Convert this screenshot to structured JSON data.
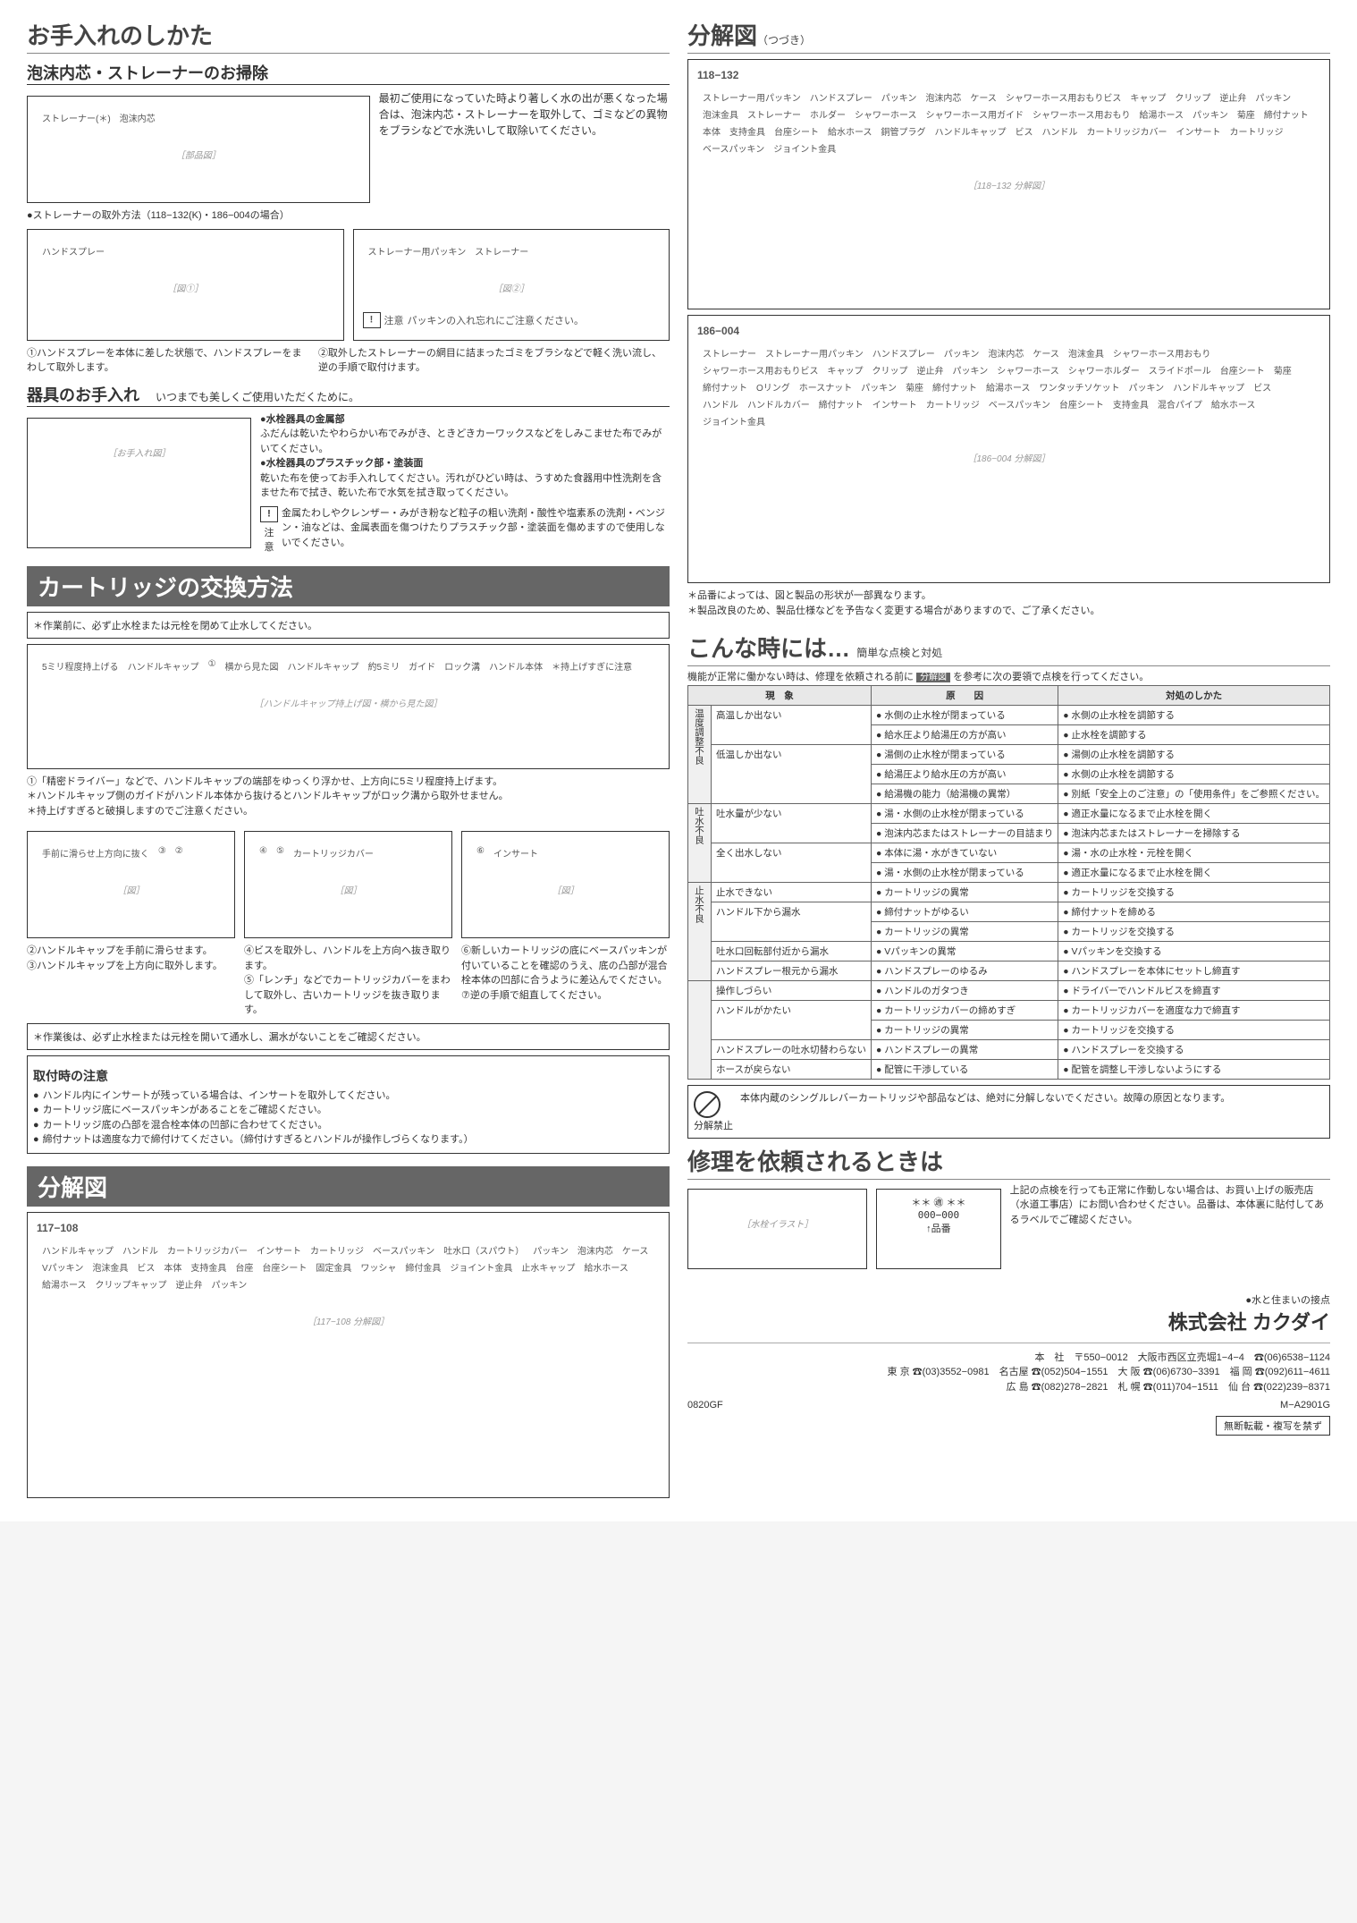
{
  "left": {
    "section1_title": "お手入れのしかた",
    "sub1_title": "泡沫内芯・ストレーナーのお掃除",
    "sub1_intro": "最初ご使用になっていた時より著しく水の出が悪くなった場合は、泡沫内芯・ストレーナーを取外して、ゴミなどの異物をブラシなどで水洗いして取除いてください。",
    "diag1_labels": [
      "ストレーナー(＊)",
      "泡沫内芯"
    ],
    "strainer_note": "●ストレーナーの取外方法（118−132(K)・186−004の場合）",
    "diag2_labels": [
      "ハンドスプレー",
      "ストレーナー用パッキン",
      "ストレーナー"
    ],
    "caution1": "パッキンの入れ忘れにご注意ください。",
    "step1": "①ハンドスプレーを本体に差した状態で、ハンドスプレーをまわして取外します。",
    "step2": "②取外したストレーナーの網目に詰まったゴミをブラシなどで軽く洗い流し、逆の手順で取付けます。",
    "sub2_title": "器具のお手入れ",
    "sub2_lead": "いつまでも美しくご使用いただくために。",
    "care_items": [
      {
        "h": "●水栓器具の金属部",
        "t": "ふだんは乾いたやわらかい布でみがき、ときどきカーワックスなどをしみこませた布でみがいてください。"
      },
      {
        "h": "●水栓器具のプラスチック部・塗装面",
        "t": "乾いた布を使ってお手入れしてください。汚れがひどい時は、うすめた食器用中性洗剤を含ませた布で拭き、乾いた布で水気を拭き取ってください。"
      }
    ],
    "caution2": "金属たわしやクレンザー・みがき粉など粒子の粗い洗剤・酸性や塩素系の洗剤・ベンジン・油などは、金属表面を傷つけたりプラスチック部・塗装面を傷めますので使用しないでください。",
    "section2_title": "カートリッジの交換方法",
    "sec2_warn1": "＊作業前に、必ず止水栓または元栓を閉めて止水してください。",
    "diag3_labels": [
      "5ミリ程度持上げる",
      "ハンドルキャップ",
      "①",
      "横から見た図",
      "ハンドルキャップ",
      "約5ミリ",
      "ガイド",
      "ロック溝",
      "ハンドル本体",
      "＊持上げすぎに注意"
    ],
    "sec2_t1": "①「精密ドライバー」などで、ハンドルキャップの端部をゆっくり浮かせ、上方向に5ミリ程度持上げます。",
    "sec2_t2": "＊ハンドルキャップ側のガイドがハンドル本体から抜けるとハンドルキャップがロック溝から取外せません。",
    "sec2_t3": "＊持上げすぎると破損しますのでご注意ください。",
    "diag4_cols": [
      {
        "labels": [
          "手前に滑らせ上方向に抜く",
          "③",
          "②"
        ],
        "caption": "②ハンドルキャップを手前に滑らせます。\n③ハンドルキャップを上方向に取外します。"
      },
      {
        "labels": [
          "④",
          "⑤",
          "カートリッジカバー"
        ],
        "caption": "④ビスを取外し、ハンドルを上方向へ抜き取ります。\n⑤「レンチ」などでカートリッジカバーをまわして取外し、古いカートリッジを抜き取ります。"
      },
      {
        "labels": [
          "⑥",
          "インサート"
        ],
        "caption": "⑥新しいカートリッジの底にベースパッキンが付いていることを確認のうえ、底の凸部が混合栓本体の凹部に合うように差込んでください。\n⑦逆の手順で組直してください。"
      }
    ],
    "sec2_warn2": "＊作業後は、必ず止水栓または元栓を開いて通水し、漏水がないことをご確認ください。",
    "install_title": "取付時の注意",
    "install_items": [
      "ハンドル内にインサートが残っている場合は、インサートを取外してください。",
      "カートリッジ底にベースパッキンがあることをご確認ください。",
      "カートリッジ底の凸部を混合栓本体の凹部に合わせてください。",
      "締付ナットは適度な力で締付けてください。（締付けすぎるとハンドルが操作しづらくなります。）"
    ],
    "section3_title": "分解図",
    "part_117": "117−108",
    "parts_117": [
      "ハンドルキャップ",
      "ハンドル",
      "カートリッジカバー",
      "インサート",
      "カートリッジ",
      "ベースパッキン",
      "吐水口（スパウト）",
      "パッキン",
      "泡沫内芯",
      "ケース",
      "Vパッキン",
      "泡沫金具",
      "ビス",
      "本体",
      "支持金具",
      "台座",
      "台座シート",
      "固定金具",
      "ワッシャ",
      "締付金具",
      "ジョイント金具",
      "止水キャップ",
      "給水ホース",
      "給湯ホース",
      "クリップキャップ",
      "逆止弁",
      "パッキン"
    ]
  },
  "right": {
    "section1_title": "分解図",
    "section1_sub": "（つづき）",
    "part_118": "118−132",
    "parts_118": [
      "ストレーナー用パッキン",
      "ハンドスプレー",
      "パッキン",
      "泡沫内芯",
      "ケース",
      "シャワーホース用おもりビス",
      "キャップ",
      "クリップ",
      "逆止弁",
      "パッキン",
      "泡沫金具",
      "ストレーナー",
      "ホルダー",
      "シャワーホース",
      "シャワーホース用ガイド",
      "シャワーホース用おもり",
      "給湯ホース",
      "パッキン",
      "菊座",
      "締付ナット",
      "本体",
      "支持金具",
      "台座シート",
      "給水ホース",
      "銅管プラグ",
      "ハンドルキャップ",
      "ビス",
      "ハンドル",
      "カートリッジカバー",
      "インサート",
      "カートリッジ",
      "ベースパッキン",
      "ジョイント金具"
    ],
    "part_186": "186−004",
    "parts_186": [
      "ストレーナー",
      "ストレーナー用パッキン",
      "ハンドスプレー",
      "パッキン",
      "泡沫内芯",
      "ケース",
      "泡沫金具",
      "シャワーホース用おもり",
      "シャワーホース用おもりビス",
      "キャップ",
      "クリップ",
      "逆止弁",
      "パッキン",
      "シャワーホース",
      "シャワーホルダー",
      "スライドポール",
      "台座シート",
      "菊座",
      "締付ナット",
      "Oリング",
      "ホースナット",
      "パッキン",
      "菊座",
      "締付ナット",
      "給湯ホース",
      "ワンタッチソケット",
      "パッキン",
      "ハンドルキャップ",
      "ビス",
      "ハンドル",
      "ハンドルカバー",
      "締付ナット",
      "インサート",
      "カートリッジ",
      "ベースパッキン",
      "台座シート",
      "支持金具",
      "混合パイプ",
      "給水ホース",
      "ジョイント金具"
    ],
    "diag_notes": [
      "＊品番によっては、図と製品の形状が一部異なります。",
      "＊製品改良のため、製品仕様などを予告なく変更する場合がありますので、ご了承ください。"
    ],
    "section2_title": "こんな時には…",
    "section2_sub": "簡単な点検と対処",
    "ts_intro1": "機能が正常に働かない時は、修理を依頼される前に",
    "ts_intro_tag": "分解図",
    "ts_intro2": "を参考に次の要領で点検を行ってください。",
    "ts_headers": [
      "現　象",
      "原　　因",
      "対処のしかた"
    ],
    "ts_groups": [
      {
        "cat": "温度調整不良",
        "rows": [
          {
            "sym": "高温しか出ない",
            "cause": "水側の止水栓が閉まっている",
            "fix": "水側の止水栓を調節する"
          },
          {
            "sym": "",
            "cause": "給水圧より給湯圧の方が高い",
            "fix": "止水栓を調節する"
          },
          {
            "sym": "低温しか出ない",
            "cause": "湯側の止水栓が閉まっている",
            "fix": "湯側の止水栓を調節する"
          },
          {
            "sym": "",
            "cause": "給湯圧より給水圧の方が高い",
            "fix": "水側の止水栓を調節する"
          },
          {
            "sym": "",
            "cause": "給湯機の能力（給湯機の異常）",
            "fix": "別紙「安全上のご注意」の「使用条件」をご参照ください。"
          }
        ]
      },
      {
        "cat": "吐水不良",
        "rows": [
          {
            "sym": "吐水量が少ない",
            "cause": "湯・水側の止水栓が閉まっている",
            "fix": "適正水量になるまで止水栓を開く"
          },
          {
            "sym": "",
            "cause": "泡沫内芯またはストレーナーの目詰まり",
            "fix": "泡沫内芯またはストレーナーを掃除する"
          },
          {
            "sym": "全く出水しない",
            "cause": "本体に湯・水がきていない",
            "fix": "湯・水の止水栓・元栓を開く"
          },
          {
            "sym": "",
            "cause": "湯・水側の止水栓が閉まっている",
            "fix": "適正水量になるまで止水栓を開く"
          }
        ]
      },
      {
        "cat": "止水不良",
        "rows": [
          {
            "sym": "止水できない",
            "cause": "カートリッジの異常",
            "fix": "カートリッジを交換する"
          },
          {
            "sym": "ハンドル下から漏水",
            "cause": "締付ナットがゆるい",
            "fix": "締付ナットを締める"
          },
          {
            "sym": "",
            "cause": "カートリッジの異常",
            "fix": "カートリッジを交換する"
          },
          {
            "sym": "吐水口回転部付近から漏水",
            "cause": "Vパッキンの異常",
            "fix": "Vパッキンを交換する"
          },
          {
            "sym": "ハンドスプレー根元から漏水",
            "cause": "ハンドスプレーのゆるみ",
            "fix": "ハンドスプレーを本体にセットし締直す"
          }
        ]
      },
      {
        "cat": "",
        "rows": [
          {
            "sym": "操作しづらい",
            "cause": "ハンドルのガタつき",
            "fix": "ドライバーでハンドルビスを締直す"
          },
          {
            "sym": "ハンドルがかたい",
            "cause": "カートリッジカバーの締めすぎ",
            "fix": "カートリッジカバーを適度な力で締直す"
          },
          {
            "sym": "",
            "cause": "カートリッジの異常",
            "fix": "カートリッジを交換する"
          },
          {
            "sym": "ハンドスプレーの吐水切替わらない",
            "cause": "ハンドスプレーの異常",
            "fix": "ハンドスプレーを交換する"
          },
          {
            "sym": "ホースが戻らない",
            "cause": "配管に干渉している",
            "fix": "配管を調整し干渉しないようにする"
          }
        ]
      }
    ],
    "prohibit_label": "分解禁止",
    "prohibit_text": "本体内蔵のシングルレバーカートリッジや部品などは、絶対に分解しないでください。故障の原因となります。",
    "section3_title": "修理を依頼されるときは",
    "repair_label_box": [
      "＊＊ ㊜ ＊＊",
      "000−000",
      "↑品番"
    ],
    "repair_text": "上記の点検を行っても正常に作動しない場合は、お買い上げの販売店（水道工事店）にお問い合わせください。品番は、本体裏に貼付してあるラベルでご確認ください。",
    "company_tagline": "●水と住まいの接点",
    "company_name": "株式会社 カクダイ",
    "addr": "本　社　〒550−0012　大阪市西区立売堀1−4−4　☎(06)6538−1124",
    "branches": [
      "東 京 ☎(03)3552−0981　名古屋 ☎(052)504−1551　大 阪 ☎(06)6730−3391　福 岡 ☎(092)611−4611",
      "広 島 ☎(082)278−2821　札 幌 ☎(011)704−1511　仙 台 ☎(022)239−8371"
    ],
    "code1": "0820GF",
    "code2": "M−A2901G",
    "copyright": "無断転載・複写を禁ず"
  }
}
